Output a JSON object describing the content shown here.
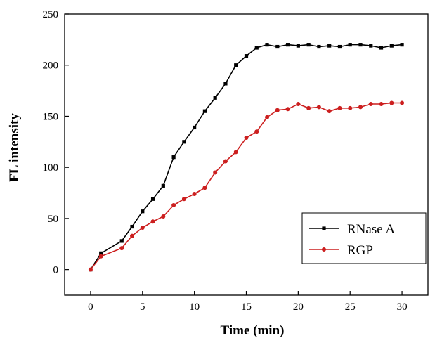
{
  "chart_data": {
    "type": "line",
    "xlabel": "Time (min)",
    "ylabel": "FL intensity",
    "xlim": [
      -2.5,
      32.5
    ],
    "ylim": [
      -25,
      250
    ],
    "xticks": [
      0,
      5,
      10,
      15,
      20,
      25,
      30
    ],
    "yticks": [
      0,
      50,
      100,
      150,
      200,
      250
    ],
    "legend_position": "bottom-right",
    "grid": false,
    "series": [
      {
        "name": "RNase A",
        "color": "#000000",
        "marker": "square",
        "x": [
          0,
          1,
          3,
          4,
          5,
          6,
          7,
          8,
          9,
          10,
          11,
          12,
          13,
          14,
          15,
          16,
          17,
          18,
          19,
          20,
          21,
          22,
          23,
          24,
          25,
          26,
          27,
          28,
          29,
          30
        ],
        "y": [
          0,
          16,
          28,
          42,
          57,
          69,
          82,
          110,
          125,
          139,
          155,
          168,
          182,
          200,
          209,
          217,
          220,
          218,
          220,
          219,
          220,
          218,
          219,
          218,
          220,
          220,
          219,
          217,
          219,
          220
        ]
      },
      {
        "name": "RGP",
        "color": "#cc1f1f",
        "marker": "circle",
        "x": [
          0,
          1,
          3,
          4,
          5,
          6,
          7,
          8,
          9,
          10,
          11,
          12,
          13,
          14,
          15,
          16,
          17,
          18,
          19,
          20,
          21,
          22,
          23,
          24,
          25,
          26,
          27,
          28,
          29,
          30
        ],
        "y": [
          0,
          13,
          21,
          33,
          41,
          47,
          52,
          63,
          69,
          74,
          80,
          95,
          106,
          115,
          129,
          135,
          149,
          156,
          157,
          162,
          158,
          159,
          155,
          158,
          158,
          159,
          162,
          162,
          163,
          163
        ]
      }
    ]
  }
}
